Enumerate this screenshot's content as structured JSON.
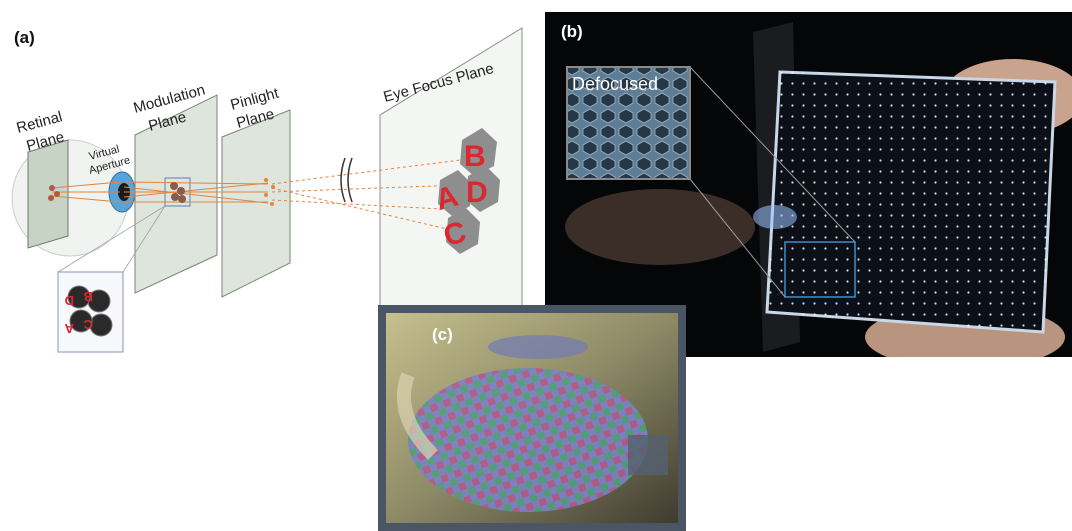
{
  "panel_a": {
    "label": "(a)",
    "planes": {
      "retinal": [
        "Retinal",
        "Plane"
      ],
      "modulation": [
        "Modulation",
        "Plane"
      ],
      "pinlight": [
        "Pinlight",
        "Plane"
      ],
      "eye_focus": "Eye Focus Plane"
    },
    "virtual_aperture": [
      "Virtual",
      "Aperture"
    ],
    "letters": [
      "A",
      "B",
      "C",
      "D"
    ],
    "colors": {
      "letter": "#d9282f",
      "plane_fill": "#dde5dc",
      "ray": "#e8833a",
      "eye": "#5aa3d8"
    }
  },
  "panel_b": {
    "label": "(b)",
    "inset_label": "Defocused",
    "colors": {
      "highlight_box": "#3a8fd0",
      "dots": "#ffffff"
    }
  },
  "panel_c": {
    "label": "(c)",
    "colors": {
      "frame": "#4a5663"
    }
  }
}
